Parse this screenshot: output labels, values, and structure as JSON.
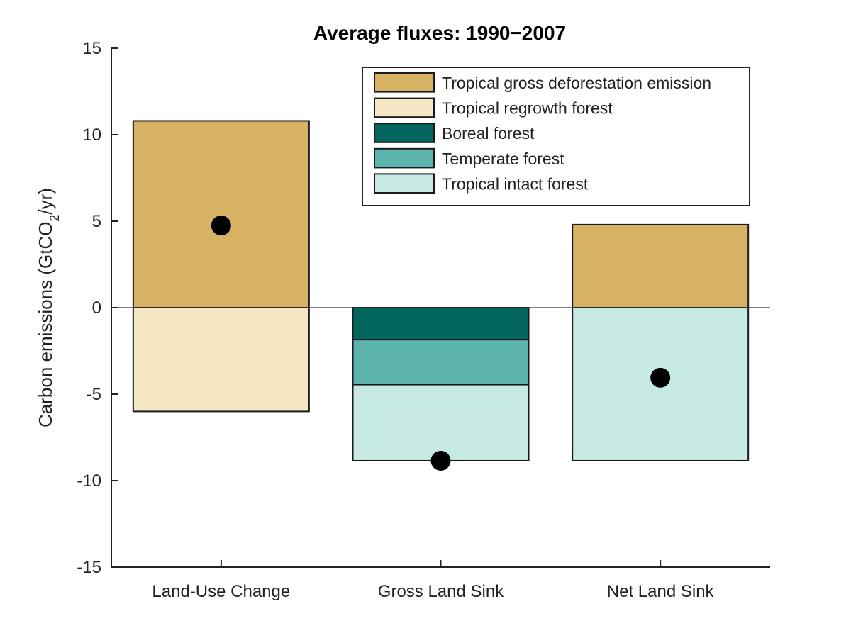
{
  "chart_data": {
    "type": "bar",
    "stacked": true,
    "title": "Average fluxes: 1990−2007",
    "ylabel_parts": [
      "Carbon emissions (GtCO",
      "2",
      "/yr)"
    ],
    "categories": [
      "Land-Use Change",
      "Gross Land Sink",
      "Net Land Sink"
    ],
    "ylim": [
      -15,
      15
    ],
    "yticks": [
      15,
      10,
      5,
      0,
      -5,
      -10,
      -15
    ],
    "ytick_labels": [
      "15",
      "10",
      "5",
      "0",
      "-5",
      "-10",
      "-15"
    ],
    "zero_line": true,
    "grid": false,
    "legend_position": "top-right",
    "series": [
      {
        "name": "Tropical gross deforestation emission",
        "color": "#D7B264",
        "values": [
          10.8,
          0,
          4.8
        ]
      },
      {
        "name": "Tropical regrowth forest",
        "color": "#F5E7C3",
        "values": [
          -6.0,
          0,
          0
        ]
      },
      {
        "name": "Boreal forest",
        "color": "#02665E",
        "values": [
          0,
          -1.85,
          0
        ]
      },
      {
        "name": "Temperate forest",
        "color": "#5CB4AC",
        "values": [
          0,
          -2.6,
          0
        ]
      },
      {
        "name": "Tropical intact forest",
        "color": "#C7EAE4",
        "values": [
          0,
          -4.4,
          -8.85
        ]
      }
    ],
    "net_points": [
      4.75,
      -8.85,
      -4.05
    ]
  }
}
